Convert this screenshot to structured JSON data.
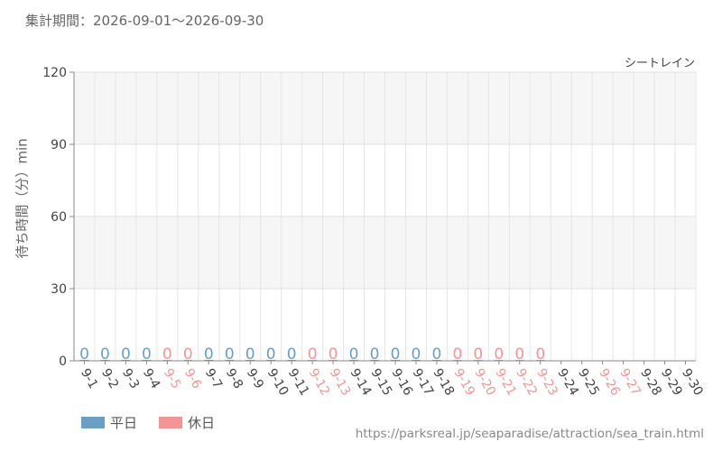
{
  "period_label": "集計期間：2026-09-01～2026-09-30",
  "source_url": "https://parksreal.jp/seaparadise/attraction/sea_train.html",
  "chart_data": {
    "type": "bar",
    "title": "シートレイン",
    "ylabel": "待ち時間（分）min",
    "ylim": [
      0,
      120
    ],
    "yticks": [
      0,
      30,
      60,
      90,
      120
    ],
    "grid": true,
    "legend_position": "bottom-left",
    "categories": [
      "9-1",
      "9-2",
      "9-3",
      "9-4",
      "9-5",
      "9-6",
      "9-7",
      "9-8",
      "9-9",
      "9-10",
      "9-11",
      "9-12",
      "9-13",
      "9-14",
      "9-15",
      "9-16",
      "9-17",
      "9-18",
      "9-19",
      "9-20",
      "9-21",
      "9-22",
      "9-23",
      "9-24",
      "9-25",
      "9-26",
      "9-27",
      "9-28",
      "9-29",
      "9-30"
    ],
    "day_type": [
      "weekday",
      "weekday",
      "weekday",
      "weekday",
      "holiday",
      "holiday",
      "weekday",
      "weekday",
      "weekday",
      "weekday",
      "weekday",
      "holiday",
      "holiday",
      "weekday",
      "weekday",
      "weekday",
      "weekday",
      "weekday",
      "holiday",
      "holiday",
      "holiday",
      "holiday",
      "holiday",
      "weekday",
      "weekday",
      "holiday",
      "holiday",
      "weekday",
      "weekday",
      "weekday"
    ],
    "values": [
      0,
      0,
      0,
      0,
      0,
      0,
      0,
      0,
      0,
      0,
      0,
      0,
      0,
      0,
      0,
      0,
      0,
      0,
      0,
      0,
      0,
      0,
      0,
      null,
      null,
      null,
      null,
      null,
      null,
      null
    ],
    "data_labels": [
      "0",
      "0",
      "0",
      "0",
      "0",
      "0",
      "0",
      "0",
      "0",
      "0",
      "0",
      "0",
      "0",
      "0",
      "0",
      "0",
      "0",
      "0",
      "0",
      "0",
      "0",
      "0",
      "0",
      "",
      "",
      "",
      "",
      "",
      "",
      ""
    ],
    "series": [
      {
        "name": "平日",
        "key": "weekday",
        "color": "#6a9ec5"
      },
      {
        "name": "休日",
        "key": "holiday",
        "color": "#f39595"
      }
    ]
  }
}
